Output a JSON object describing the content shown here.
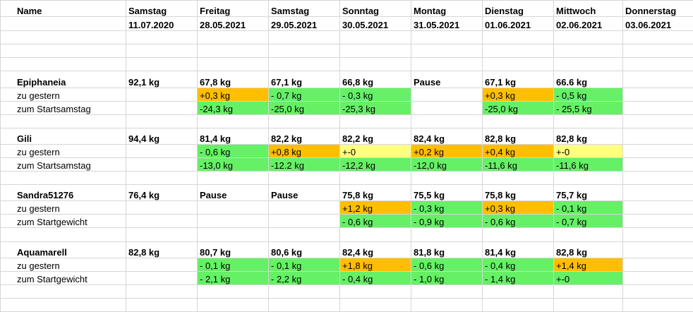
{
  "header": {
    "name_label": "Name",
    "days": [
      {
        "weekday": "Samstag",
        "date": "11.07.2020"
      },
      {
        "weekday": "Freitag",
        "date": "28.05.2021"
      },
      {
        "weekday": "Samstag",
        "date": "29.05.2021"
      },
      {
        "weekday": "Sonntag",
        "date": "30.05.2021"
      },
      {
        "weekday": "Montag",
        "date": "31.05.2021"
      },
      {
        "weekday": "Dienstag",
        "date": "01.06.2021"
      },
      {
        "weekday": "Mittwoch",
        "date": "02.06.2021"
      },
      {
        "weekday": "Donnerstag",
        "date": "03.06.2021"
      }
    ]
  },
  "colors": {
    "green": "#66f066",
    "orange": "#ffbf00",
    "yellow": "#ffff80"
  },
  "blocks": [
    {
      "name": "Epiphaneia",
      "values": [
        "92,1 kg",
        "67,8 kg",
        "67,1 kg",
        "66,8 kg",
        "Pause",
        "67,1 kg",
        "66.6 kg",
        ""
      ],
      "rows": [
        {
          "label": "zu gestern",
          "cells": [
            {
              "text": "",
              "color": ""
            },
            {
              "text": "+0,3 kg",
              "color": "orange"
            },
            {
              "text": "- 0,7 kg",
              "color": "green"
            },
            {
              "text": "- 0,3 kg",
              "color": "green"
            },
            {
              "text": "",
              "color": ""
            },
            {
              "text": "+0,3 kg",
              "color": "orange"
            },
            {
              "text": "- 0,5 kg",
              "color": "green"
            },
            {
              "text": "",
              "color": ""
            }
          ]
        },
        {
          "label": "zum Startsamstag",
          "cells": [
            {
              "text": "",
              "color": ""
            },
            {
              "text": "-24,3 kg",
              "color": "green"
            },
            {
              "text": "-25,0 kg",
              "color": "green"
            },
            {
              "text": "-25,3 kg",
              "color": "green"
            },
            {
              "text": "",
              "color": ""
            },
            {
              "text": "-25,0 kg",
              "color": "green"
            },
            {
              "text": "- 25,5 kg",
              "color": "green"
            },
            {
              "text": "",
              "color": ""
            }
          ]
        }
      ]
    },
    {
      "name": "Gili",
      "values": [
        "94,4 kg",
        "81,4 kg",
        "82,2 kg",
        "82,2 kg",
        "82,4 kg",
        "82,8 kg",
        "82,8 kg",
        ""
      ],
      "rows": [
        {
          "label": "zu gestern",
          "cells": [
            {
              "text": "",
              "color": ""
            },
            {
              "text": "- 0,6 kg",
              "color": "green"
            },
            {
              "text": "+0,8 kg",
              "color": "orange"
            },
            {
              "text": "+-0",
              "color": "yellow"
            },
            {
              "text": "+0,2 kg",
              "color": "orange"
            },
            {
              "text": "+0,4 kg",
              "color": "orange"
            },
            {
              "text": "+-0",
              "color": "yellow"
            },
            {
              "text": "",
              "color": ""
            }
          ]
        },
        {
          "label": "zum Startsamstag",
          "cells": [
            {
              "text": "",
              "color": ""
            },
            {
              "text": "-13,0 kg",
              "color": "green"
            },
            {
              "text": "-12.2 kg",
              "color": "green"
            },
            {
              "text": "-12,2 kg",
              "color": "green"
            },
            {
              "text": "-12,0 kg",
              "color": "green"
            },
            {
              "text": "-11,6 kg",
              "color": "green"
            },
            {
              "text": "-11,6 kg",
              "color": "green"
            },
            {
              "text": "",
              "color": ""
            }
          ]
        }
      ]
    },
    {
      "name": "Sandra51276",
      "values": [
        "76,4 kg",
        "Pause",
        "Pause",
        "75,8 kg",
        "75,5 kg",
        "75,8 kg",
        "75,7 kg",
        ""
      ],
      "rows": [
        {
          "label": "zu gestern",
          "cells": [
            {
              "text": "",
              "color": ""
            },
            {
              "text": "",
              "color": ""
            },
            {
              "text": "",
              "color": ""
            },
            {
              "text": "+1,2 kg",
              "color": "orange"
            },
            {
              "text": "- 0,3 kg",
              "color": "green"
            },
            {
              "text": "+0,3 kg",
              "color": "orange"
            },
            {
              "text": "- 0,1 kg",
              "color": "green"
            },
            {
              "text": "",
              "color": ""
            }
          ]
        },
        {
          "label": "zum Startgewicht",
          "cells": [
            {
              "text": "",
              "color": ""
            },
            {
              "text": "",
              "color": ""
            },
            {
              "text": "",
              "color": ""
            },
            {
              "text": "- 0,6 kg",
              "color": "green"
            },
            {
              "text": "- 0,9 kg",
              "color": "green"
            },
            {
              "text": "- 0,6 kg",
              "color": "green"
            },
            {
              "text": "- 0,7 kg",
              "color": "green"
            },
            {
              "text": "",
              "color": ""
            }
          ]
        }
      ]
    },
    {
      "name": "Aquamarell",
      "values": [
        "82,8 kg",
        "80,7 kg",
        "80,6 kg",
        "82,4 kg",
        "81,8 kg",
        "81,4 kg",
        "82,8 kg",
        ""
      ],
      "rows": [
        {
          "label": "zu gestern",
          "cells": [
            {
              "text": "",
              "color": ""
            },
            {
              "text": "- 0,1 kg",
              "color": "green"
            },
            {
              "text": "- 0,1 kg",
              "color": "green"
            },
            {
              "text": "+1,8 kg",
              "color": "orange"
            },
            {
              "text": "- 0,6 kg",
              "color": "green"
            },
            {
              "text": "- 0,4 kg",
              "color": "green"
            },
            {
              "text": "+1,4 kg",
              "color": "orange"
            },
            {
              "text": "",
              "color": ""
            }
          ]
        },
        {
          "label": "zum Startgewicht",
          "cells": [
            {
              "text": "",
              "color": ""
            },
            {
              "text": "- 2,1 kg",
              "color": "green"
            },
            {
              "text": "- 2,2 kg",
              "color": "green"
            },
            {
              "text": "- 0,4 kg",
              "color": "green"
            },
            {
              "text": "- 1,0 kg",
              "color": "green"
            },
            {
              "text": "- 1,4 kg",
              "color": "green"
            },
            {
              "text": "+-0",
              "color": "green"
            },
            {
              "text": "",
              "color": ""
            }
          ]
        }
      ]
    }
  ]
}
